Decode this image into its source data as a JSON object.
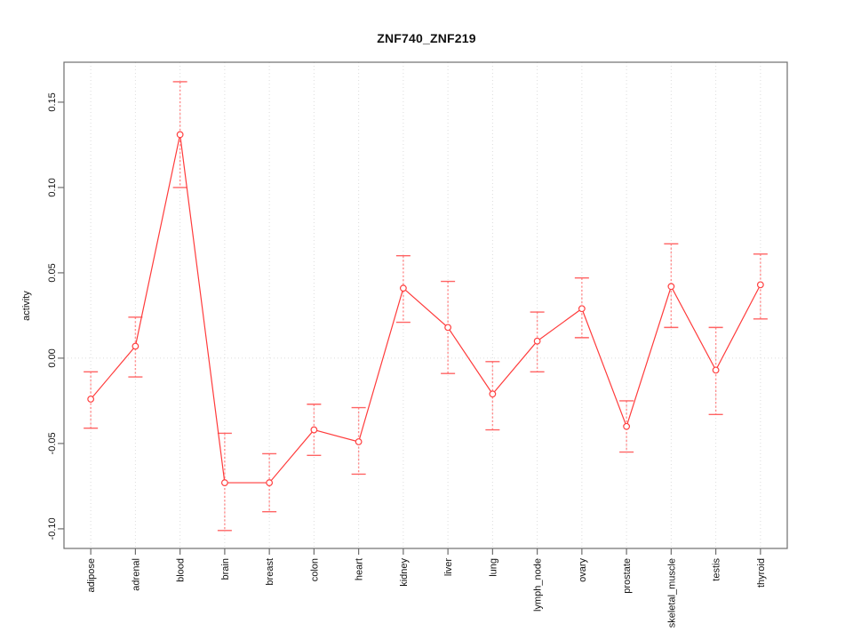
{
  "chart_data": {
    "type": "line",
    "title": "ZNF740_ZNF219",
    "xlabel": "",
    "ylabel": "activity",
    "categories": [
      "adipose",
      "adrenal",
      "blood",
      "brain",
      "breast",
      "colon",
      "heart",
      "kidney",
      "liver",
      "lung",
      "lymph_node",
      "ovary",
      "prostate",
      "skeletal_muscle",
      "testis",
      "thyroid"
    ],
    "series": [
      {
        "name": "ZNF740_ZNF219",
        "values": [
          -0.024,
          0.007,
          0.131,
          -0.073,
          -0.073,
          -0.042,
          -0.049,
          0.041,
          0.018,
          -0.021,
          0.01,
          0.029,
          -0.04,
          0.042,
          -0.007,
          0.043
        ],
        "ci_lower": [
          -0.041,
          -0.011,
          0.1,
          -0.101,
          -0.09,
          -0.057,
          -0.068,
          0.021,
          -0.009,
          -0.042,
          -0.008,
          0.012,
          -0.055,
          0.018,
          -0.033,
          0.023
        ],
        "ci_upper": [
          -0.008,
          0.024,
          0.162,
          -0.044,
          -0.056,
          -0.027,
          -0.029,
          0.06,
          0.045,
          -0.002,
          0.027,
          0.047,
          -0.025,
          0.067,
          0.018,
          0.061
        ]
      }
    ],
    "yticks": [
      -0.1,
      -0.05,
      0.0,
      0.05,
      0.1,
      0.15
    ],
    "ytick_labels": [
      "-0.10",
      "-0.05",
      "0.00",
      "0.05",
      "0.10",
      "0.15"
    ],
    "ylim": [
      -0.1115,
      0.1734
    ],
    "zero_line": true,
    "grid": {
      "vertical": "dotted line at every category",
      "horizontal": "dotted line at zero only"
    },
    "legend": null,
    "marker": "open-circle",
    "error_bars": "dotted stem with solid caps",
    "colors": {
      "line": "#ff3b3b",
      "marker": "#ff4040",
      "error_stem": "#ff8f8f",
      "error_cap": "#ff6363",
      "grid": "#dcdcdc",
      "axis_box": "#6e6e6e",
      "text": "#111111",
      "background": "#ffffff"
    }
  }
}
